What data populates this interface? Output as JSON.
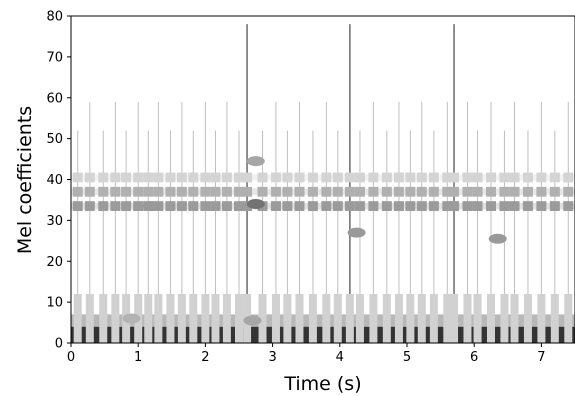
{
  "chart_data": {
    "type": "heatmap",
    "title": "",
    "xlabel": "Time (s)",
    "ylabel": "Mel coefficients",
    "xlim": [
      0,
      7.5
    ],
    "ylim": [
      0,
      80
    ],
    "xticks": [
      0,
      1,
      2,
      3,
      4,
      5,
      6,
      7
    ],
    "yticks": [
      0,
      10,
      20,
      30,
      40,
      50,
      60,
      70,
      80
    ],
    "colormap": "grayscale (white = low energy, black = high energy)",
    "grid": false,
    "bottom_band": {
      "mel_range": [
        0,
        4
      ],
      "intensity": 0.8
    },
    "sustained_bands": [
      {
        "mel": 33.5,
        "intensity": 0.28
      },
      {
        "mel": 37,
        "intensity": 0.22
      },
      {
        "mel": 40.5,
        "intensity": 0.12
      }
    ],
    "onsets_s": [
      0.1,
      0.28,
      0.48,
      0.66,
      0.82,
      1.0,
      1.15,
      1.3,
      1.48,
      1.65,
      1.82,
      2.0,
      2.15,
      2.32,
      2.5,
      2.62,
      2.85,
      3.05,
      3.22,
      3.4,
      3.6,
      3.8,
      3.97,
      4.15,
      4.3,
      4.5,
      4.7,
      4.88,
      5.05,
      5.22,
      5.4,
      5.6,
      5.7,
      5.9,
      6.05,
      6.25,
      6.45,
      6.6,
      6.8,
      7.0,
      7.2,
      7.4
    ],
    "strong_onsets_s": [
      2.62,
      4.15,
      5.7
    ],
    "blobs": [
      {
        "t": 2.75,
        "mel": 34,
        "intensity": 0.55
      },
      {
        "t": 2.75,
        "mel": 44.5,
        "intensity": 0.35
      },
      {
        "t": 1.2,
        "mel": 33.5,
        "intensity": 0.4
      },
      {
        "t": 4.25,
        "mel": 27,
        "intensity": 0.4
      },
      {
        "t": 6.35,
        "mel": 25.5,
        "intensity": 0.4
      },
      {
        "t": 0.9,
        "mel": 6,
        "intensity": 0.3
      },
      {
        "t": 2.7,
        "mel": 5.5,
        "intensity": 0.35
      }
    ]
  }
}
